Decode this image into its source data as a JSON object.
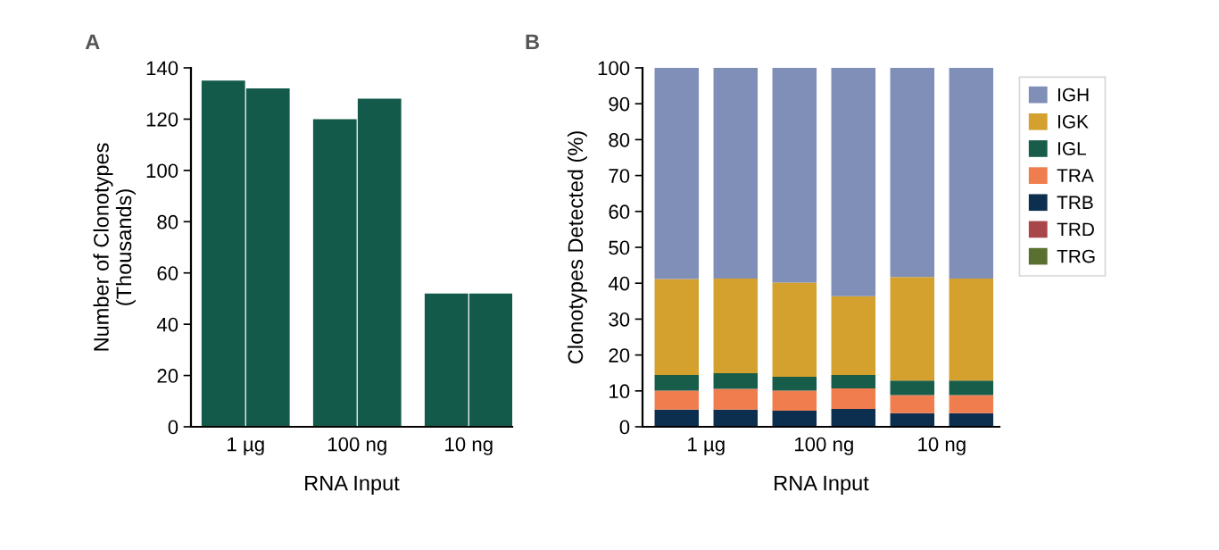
{
  "chart_data": [
    {
      "type": "bar",
      "title": "A",
      "xlabel": "RNA Input",
      "ylabel": "Number of Clonotypes\n(Thousands)",
      "categories": [
        "1 µg",
        "100 ng",
        "10 ng"
      ],
      "ylim": [
        0,
        140
      ],
      "yticks": [
        0,
        20,
        40,
        60,
        80,
        100,
        120,
        140
      ],
      "grid": false,
      "legend": false,
      "series": [
        {
          "color": "#135a4a",
          "values": [
            135,
            120,
            52
          ]
        },
        {
          "color": "#135a4a",
          "values": [
            132,
            128,
            52
          ]
        }
      ]
    },
    {
      "type": "bar",
      "title": "B",
      "xlabel": "RNA Input",
      "ylabel": "Clonotypes Detected (%)",
      "stacked": true,
      "categories": [
        "1 µg",
        null,
        "100 ng",
        null,
        "10 ng",
        null
      ],
      "ylim": [
        0,
        100
      ],
      "yticks": [
        0,
        10,
        20,
        30,
        40,
        50,
        60,
        70,
        80,
        90,
        100
      ],
      "grid": false,
      "legend": "right",
      "series": [
        {
          "name": "TRG",
          "color": "#5a7030",
          "values": [
            null,
            null,
            null,
            null,
            null,
            null
          ]
        },
        {
          "name": "TRD",
          "color": "#a8464a",
          "values": [
            null,
            null,
            null,
            null,
            null,
            null
          ]
        },
        {
          "name": "TRB",
          "color": "#0d2f4f",
          "values": [
            4.8,
            4.8,
            4.5,
            5.0,
            3.8,
            3.8
          ]
        },
        {
          "name": "TRA",
          "color": "#f07d4e",
          "values": [
            5.3,
            5.8,
            5.6,
            5.7,
            5.0,
            5.0
          ]
        },
        {
          "name": "IGL",
          "color": "#185c4a",
          "values": [
            4.3,
            4.3,
            3.8,
            3.7,
            4.1,
            4.1
          ]
        },
        {
          "name": "IGK",
          "color": "#d4a02e",
          "values": [
            26.8,
            26.4,
            26.3,
            22.0,
            28.8,
            28.4
          ]
        },
        {
          "name": "IGH",
          "color": "#7f8fb8",
          "values": [
            58.8,
            58.7,
            59.8,
            63.6,
            58.3,
            58.7
          ]
        }
      ]
    }
  ]
}
